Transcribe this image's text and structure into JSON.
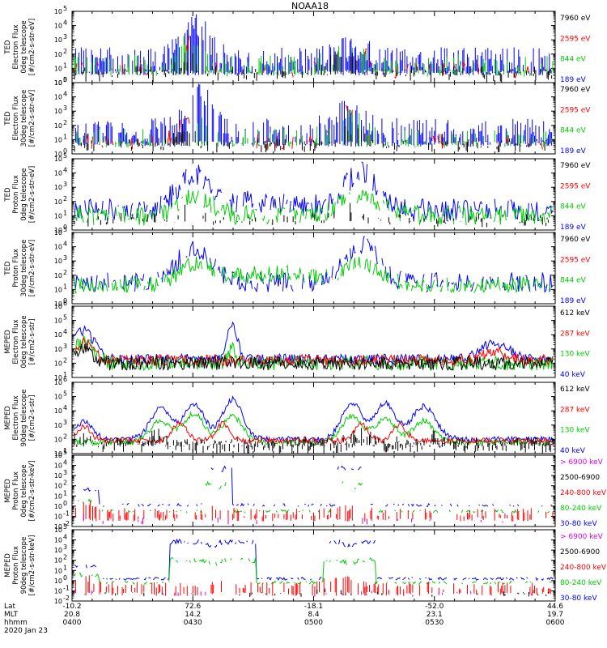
{
  "title": "NOAA18",
  "colors": {
    "blue": "#0000ff",
    "red": "#ff0000",
    "green": "#00cc00",
    "black": "#000000",
    "magenta": "#dd00dd"
  },
  "footer": {
    "row_labels": [
      "Lat",
      "MLT",
      "hhmm",
      "2020 Jan 23"
    ],
    "columns": [
      {
        "lat": "-10.2",
        "mlt": "20.8",
        "hhmm": "0400"
      },
      {
        "lat": "72.6",
        "mlt": "14.2",
        "hhmm": "0430"
      },
      {
        "lat": "-18.1",
        "mlt": "8.4",
        "hhmm": "0500"
      },
      {
        "lat": "-52.0",
        "mlt": "23.1",
        "hhmm": "0530"
      },
      {
        "lat": "44.6",
        "mlt": "19.7",
        "hhmm": "0600"
      }
    ]
  },
  "chart_data": [
    {
      "type": "line",
      "panel": 1,
      "ylabel": [
        "TED",
        "Electron Flux",
        "0deg telescope",
        "[#/cm2-s-str-eV]"
      ],
      "y_log": true,
      "ylim_exp": [
        0,
        5
      ],
      "legend": [
        {
          "label": "7960 eV",
          "color": "black"
        },
        {
          "label": "2595 eV",
          "color": "red"
        },
        {
          "label": "844 eV",
          "color": "green"
        },
        {
          "label": "189 eV",
          "color": "blue"
        }
      ],
      "series": [
        {
          "name": "189 eV",
          "color": "blue",
          "style": "sporadic",
          "base": 1.6,
          "amp": 0.9,
          "bumps": [
            [
              0.25,
              0.04,
              2.6
            ],
            [
              0.58,
              0.05,
              0.8
            ]
          ],
          "density": 0.6
        },
        {
          "name": "844 eV",
          "color": "green",
          "style": "sporadic",
          "base": 1.2,
          "amp": 0.8,
          "bumps": [
            [
              0.24,
              0.03,
              2.2
            ],
            [
              0.57,
              0.045,
              1.2
            ]
          ],
          "density": 0.35
        },
        {
          "name": "2595 eV",
          "color": "red",
          "style": "dense",
          "base": 0.9,
          "amp": 0.6,
          "bumps": [
            [
              0.24,
              0.03,
              1.8
            ],
            [
              0.57,
              0.045,
              2.2
            ]
          ],
          "density": 0.3
        },
        {
          "name": "7960 eV",
          "color": "black",
          "style": "sporadic",
          "base": 0.6,
          "amp": 0.6,
          "bumps": [
            [
              0.24,
              0.025,
              1.4
            ],
            [
              0.57,
              0.04,
              1.7
            ]
          ],
          "density": 0.4
        }
      ]
    },
    {
      "type": "line",
      "panel": 2,
      "ylabel": [
        "TED",
        "Electron Flux",
        "30deg telescope",
        "[#/cm2-s-str-eV]"
      ],
      "y_log": true,
      "ylim_exp": [
        0,
        5
      ],
      "legend": [
        {
          "label": "7960 eV",
          "color": "black"
        },
        {
          "label": "2595 eV",
          "color": "red"
        },
        {
          "label": "844 eV",
          "color": "green"
        },
        {
          "label": "189 eV",
          "color": "blue"
        }
      ],
      "series": [
        {
          "name": "189 eV",
          "color": "blue",
          "style": "sporadic",
          "base": 1.6,
          "amp": 0.9,
          "bumps": [
            [
              0.26,
              0.04,
              2.7
            ],
            [
              0.57,
              0.05,
              1.5
            ]
          ],
          "density": 0.55
        },
        {
          "name": "844 eV",
          "color": "green",
          "style": "sporadic",
          "base": 1.1,
          "amp": 0.7,
          "bumps": [
            [
              0.24,
              0.03,
              2.4
            ],
            [
              0.57,
              0.045,
              1.7
            ]
          ],
          "density": 0.3
        },
        {
          "name": "2595 eV",
          "color": "red",
          "style": "dense",
          "base": 0.9,
          "amp": 0.6,
          "bumps": [
            [
              0.24,
              0.03,
              1.6
            ],
            [
              0.57,
              0.045,
              2.0
            ]
          ],
          "density": 0.3
        },
        {
          "name": "7960 eV",
          "color": "black",
          "style": "sporadic",
          "base": 0.6,
          "amp": 0.5,
          "bumps": [
            [
              0.23,
              0.025,
              1.3
            ],
            [
              0.57,
              0.04,
              1.3
            ]
          ],
          "density": 0.35
        }
      ]
    },
    {
      "type": "line",
      "panel": 3,
      "ylabel": [
        "TED",
        "Proton Flux",
        "0deg telescope",
        "[#/cm2-s-str-eV]"
      ],
      "y_log": true,
      "ylim_exp": [
        0,
        5
      ],
      "legend": [
        {
          "label": "7960 eV",
          "color": "black"
        },
        {
          "label": "2595 eV",
          "color": "red"
        },
        {
          "label": "844 eV",
          "color": "green"
        },
        {
          "label": "189 eV",
          "color": "blue"
        }
      ],
      "series": [
        {
          "name": "189 eV",
          "color": "blue",
          "style": "dense",
          "base": 1.4,
          "amp": 0.8,
          "bumps": [
            [
              0.25,
              0.05,
              2.4
            ],
            [
              0.6,
              0.05,
              2.6
            ],
            [
              0.4,
              0.12,
              0.6
            ]
          ],
          "density": 0.8
        },
        {
          "name": "844 eV",
          "color": "green",
          "style": "dense",
          "base": 1.0,
          "amp": 0.7,
          "bumps": [
            [
              0.25,
              0.05,
              1.4
            ],
            [
              0.6,
              0.05,
              1.6
            ]
          ],
          "density": 0.85
        },
        {
          "name": "7960 eV",
          "color": "black",
          "style": "sporadic",
          "base": 0.7,
          "amp": 0.5,
          "bumps": [
            [
              0.24,
              0.03,
              0.8
            ],
            [
              0.58,
              0.03,
              0.8
            ]
          ],
          "density": 0.25
        }
      ]
    },
    {
      "type": "line",
      "panel": 4,
      "ylabel": [
        "TED",
        "Proton Flux",
        "30deg telescope",
        "[#/cm2-s-str-eV]"
      ],
      "y_log": true,
      "ylim_exp": [
        0,
        5
      ],
      "legend": [
        {
          "label": "7960 eV",
          "color": "black"
        },
        {
          "label": "2595 eV",
          "color": "red"
        },
        {
          "label": "844 eV",
          "color": "green"
        },
        {
          "label": "189 eV",
          "color": "blue"
        }
      ],
      "series": [
        {
          "name": "189 eV",
          "color": "blue",
          "style": "dense",
          "base": 1.5,
          "amp": 0.7,
          "bumps": [
            [
              0.25,
              0.05,
              2.4
            ],
            [
              0.6,
              0.05,
              2.6
            ]
          ],
          "density": 0.75
        },
        {
          "name": "844 eV",
          "color": "green",
          "style": "dense",
          "base": 1.3,
          "amp": 0.6,
          "bumps": [
            [
              0.25,
              0.05,
              1.2
            ],
            [
              0.6,
              0.05,
              1.3
            ],
            [
              0.42,
              0.15,
              0.8
            ]
          ],
          "density": 0.9
        }
      ]
    },
    {
      "type": "line",
      "panel": 5,
      "ylabel": [
        "MEPED",
        "Electron Flux",
        "0deg telescope",
        "[#/cm2-s-str]"
      ],
      "y_log": true,
      "ylim_exp": [
        1,
        6
      ],
      "legend": [
        {
          "label": "612 keV",
          "color": "black"
        },
        {
          "label": "287 keV",
          "color": "red"
        },
        {
          "label": "130 keV",
          "color": "green"
        },
        {
          "label": "40 keV",
          "color": "blue"
        }
      ],
      "series": [
        {
          "name": "40 keV",
          "color": "blue",
          "style": "dense",
          "base": 2.3,
          "amp": 0.35,
          "bumps": [
            [
              0.02,
              0.03,
              2.0
            ],
            [
              0.33,
              0.015,
              2.5
            ],
            [
              0.88,
              0.04,
              1.2
            ]
          ],
          "density": 1.0
        },
        {
          "name": "130 keV",
          "color": "green",
          "style": "dense",
          "base": 2.0,
          "amp": 0.5,
          "bumps": [
            [
              0.02,
              0.03,
              1.5
            ],
            [
              0.33,
              0.01,
              1.2
            ]
          ],
          "density": 1.0
        },
        {
          "name": "287 keV",
          "color": "red",
          "style": "dense",
          "base": 2.2,
          "amp": 0.4,
          "bumps": [
            [
              0.02,
              0.025,
              1.2
            ],
            [
              0.88,
              0.04,
              0.6
            ]
          ],
          "density": 1.0
        },
        {
          "name": "612 keV",
          "color": "black",
          "style": "dense",
          "base": 2.0,
          "amp": 0.5,
          "bumps": [
            [
              0.02,
              0.02,
              1.1
            ]
          ],
          "density": 1.0
        }
      ]
    },
    {
      "type": "line",
      "panel": 6,
      "ylabel": [
        "MEPED",
        "Electron Flux",
        "90deg telescope",
        "[#/cm2-s-str]"
      ],
      "y_log": true,
      "ylim_exp": [
        1,
        6
      ],
      "legend": [
        {
          "label": "612 keV",
          "color": "black"
        },
        {
          "label": "287 keV",
          "color": "red"
        },
        {
          "label": "130 keV",
          "color": "green"
        },
        {
          "label": "40 keV",
          "color": "blue"
        }
      ],
      "series": [
        {
          "name": "40 keV",
          "color": "blue",
          "style": "dense",
          "base": 2.0,
          "amp": 0.2,
          "bumps": [
            [
              0.02,
              0.025,
              1.2
            ],
            [
              0.18,
              0.03,
              2.2
            ],
            [
              0.25,
              0.03,
              2.5
            ],
            [
              0.33,
              0.03,
              2.8
            ],
            [
              0.58,
              0.03,
              2.6
            ],
            [
              0.65,
              0.03,
              2.5
            ],
            [
              0.73,
              0.035,
              2.3
            ]
          ],
          "density": 1.0
        },
        {
          "name": "130 keV",
          "color": "green",
          "style": "dense",
          "base": 1.8,
          "amp": 0.2,
          "bumps": [
            [
              0.18,
              0.03,
              1.5
            ],
            [
              0.25,
              0.03,
              2.0
            ],
            [
              0.33,
              0.03,
              1.8
            ],
            [
              0.58,
              0.03,
              1.8
            ],
            [
              0.65,
              0.03,
              1.7
            ],
            [
              0.73,
              0.03,
              1.5
            ]
          ],
          "density": 1.0
        },
        {
          "name": "287 keV",
          "color": "red",
          "style": "dense",
          "base": 1.9,
          "amp": 0.2,
          "bumps": [
            [
              0.02,
              0.02,
              1.0
            ],
            [
              0.22,
              0.02,
              1.3
            ],
            [
              0.31,
              0.02,
              1.2
            ],
            [
              0.6,
              0.02,
              1.2
            ],
            [
              0.68,
              0.02,
              1.1
            ]
          ],
          "density": 1.0
        },
        {
          "name": "612 keV",
          "color": "black",
          "style": "sporadic",
          "base": 1.6,
          "amp": 0.6,
          "bumps": [
            [
              0.02,
              0.02,
              0.8
            ],
            [
              0.17,
              0.02,
              0.6
            ],
            [
              0.6,
              0.03,
              0.6
            ],
            [
              0.75,
              0.02,
              0.5
            ]
          ],
          "density": 0.7
        }
      ]
    },
    {
      "type": "line",
      "panel": 7,
      "ylabel": [
        "MEPED",
        "Proton Flux",
        "0deg telescope",
        "[#/cm2-s-str-keV]"
      ],
      "y_log": true,
      "ylim_exp": [
        -2,
        5
      ],
      "legend": [
        {
          "label": "> 6900 keV",
          "color": "magenta"
        },
        {
          "label": "2500-6900",
          "color": "black"
        },
        {
          "label": "240-800 keV",
          "color": "red"
        },
        {
          "label": "80-240 keV",
          "color": "green"
        },
        {
          "label": "30-80 keV",
          "color": "blue"
        }
      ],
      "series": [
        {
          "name": "30-80 keV",
          "color": "blue",
          "style": "plateau",
          "base": 0.1,
          "amp": 0.15,
          "plateaus": [
            [
              0.27,
              0.33,
              3.8
            ],
            [
              0.55,
              0.61,
              3.8
            ]
          ],
          "edge": [
            0.0,
            0.05,
            1.5
          ],
          "density": 0.5
        },
        {
          "name": "80-240 keV",
          "color": "green",
          "style": "plateau",
          "base": -0.5,
          "amp": 0.15,
          "plateaus": [
            [
              0.27,
              0.33,
              2.2
            ],
            [
              0.55,
              0.61,
              2.2
            ]
          ],
          "edge": [
            0.0,
            0.05,
            1.0
          ],
          "density": 0.5
        },
        {
          "name": "240-800 keV",
          "color": "red",
          "style": "sporadic",
          "base": -0.6,
          "amp": 0.4,
          "bumps": [
            [
              0.02,
              0.03,
              0.9
            ],
            [
              0.3,
              0.03,
              0.4
            ],
            [
              0.58,
              0.03,
              0.4
            ]
          ],
          "density": 0.25
        },
        {
          "name": "> 6900 keV",
          "color": "magenta",
          "style": "sporadic",
          "base": -1.5,
          "amp": 0.3,
          "bumps": [
            [
              0.01,
              0.02,
              0.6
            ]
          ],
          "density": 0.05
        }
      ]
    },
    {
      "type": "line",
      "panel": 8,
      "ylabel": [
        "MEPED",
        "Proton Flux",
        "90deg telescope",
        "[#/cm2-s-str-keV]"
      ],
      "y_log": true,
      "ylim_exp": [
        -2,
        5
      ],
      "legend": [
        {
          "label": "> 6900 keV",
          "color": "magenta"
        },
        {
          "label": "2500-6900",
          "color": "black"
        },
        {
          "label": "240-800 keV",
          "color": "red"
        },
        {
          "label": "80-240 keV",
          "color": "green"
        },
        {
          "label": "30-80 keV",
          "color": "blue"
        }
      ],
      "series": [
        {
          "name": "30-80 keV",
          "color": "blue",
          "style": "plateau",
          "base": 0.2,
          "amp": 0.15,
          "plateaus": [
            [
              0.2,
              0.38,
              3.8
            ],
            [
              0.52,
              0.63,
              3.8
            ]
          ],
          "edge": [
            0.0,
            0.05,
            1.2
          ],
          "density": 0.7
        },
        {
          "name": "80-240 keV",
          "color": "green",
          "style": "plateau",
          "base": -0.2,
          "amp": 0.15,
          "plateaus": [
            [
              0.2,
              0.38,
              2.0
            ],
            [
              0.52,
              0.63,
              2.0
            ]
          ],
          "edge": [
            0.0,
            0.05,
            0.8
          ],
          "density": 0.6
        },
        {
          "name": "240-800 keV",
          "color": "red",
          "style": "sporadic",
          "base": -0.5,
          "amp": 0.4,
          "bumps": [
            [
              0.02,
              0.03,
              0.8
            ],
            [
              0.55,
              0.03,
              1.0
            ],
            [
              0.3,
              0.05,
              0.4
            ]
          ],
          "density": 0.3
        },
        {
          "name": "2500-6900",
          "color": "black",
          "style": "sporadic",
          "base": -1.3,
          "amp": 0.3,
          "bumps": [
            [
              0.53,
              0.02,
              0.8
            ]
          ],
          "density": 0.08
        },
        {
          "name": "> 6900 keV",
          "color": "magenta",
          "style": "sporadic",
          "base": -1.3,
          "amp": 0.3,
          "bumps": [
            [
              0.01,
              0.02,
              0.4
            ]
          ],
          "density": 0.05
        }
      ]
    }
  ]
}
